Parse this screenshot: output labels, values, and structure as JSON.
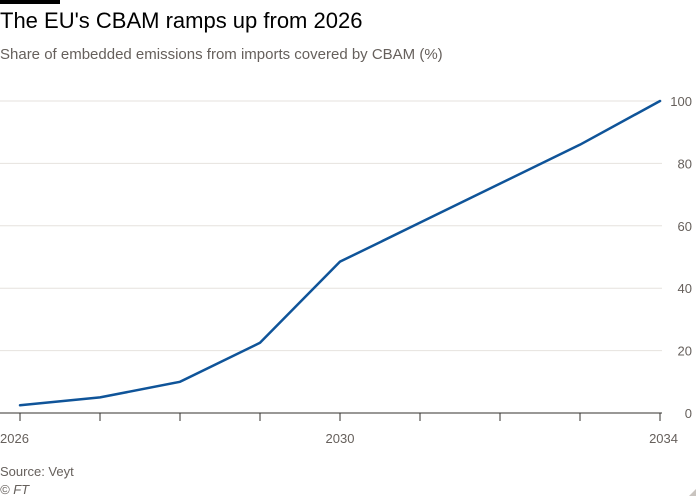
{
  "header": {
    "title": "The EU's CBAM ramps up from 2026",
    "subtitle": "Share of embedded emissions from imports covered by CBAM (%)"
  },
  "footer": {
    "source": "Source: Veyt",
    "credit": "© FT"
  },
  "colors": {
    "line": "#0f5499",
    "grid": "#e6e2de",
    "axis": "#33302e",
    "tick_text": "#66605c"
  },
  "chart_data": {
    "type": "line",
    "title": "The EU's CBAM ramps up from 2026",
    "subtitle": "Share of embedded emissions from imports covered by CBAM (%)",
    "xlabel": "",
    "ylabel": "",
    "x": [
      2026,
      2027,
      2028,
      2029,
      2030,
      2031,
      2032,
      2033,
      2034
    ],
    "series": [
      {
        "values": [
          2.5,
          5,
          10,
          22.5,
          48.5,
          61,
          73.5,
          86,
          100
        ]
      }
    ],
    "xlim": [
      2026,
      2034
    ],
    "ylim": [
      0,
      100
    ],
    "x_ticks": [
      2026,
      2027,
      2028,
      2029,
      2030,
      2031,
      2032,
      2033,
      2034
    ],
    "x_tick_labels": [
      "2026",
      "",
      "",
      "",
      "2030",
      "",
      "",
      "",
      "2034"
    ],
    "y_ticks": [
      0,
      20,
      40,
      60,
      80,
      100
    ],
    "y_tick_labels": [
      "0",
      "20",
      "40",
      "60",
      "80",
      "100"
    ],
    "grid": true,
    "y_axis_position": "right",
    "legend": "none"
  }
}
